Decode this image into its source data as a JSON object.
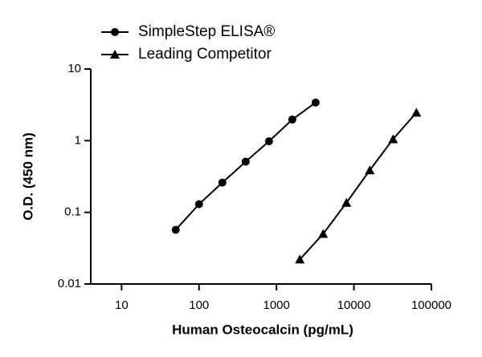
{
  "chart_data": {
    "type": "line",
    "x_label": "Human Osteocalcin (pg/mL)",
    "y_label": "O.D. (450 nm)",
    "x_scale": "log",
    "y_scale": "log",
    "legend": "top-left",
    "xlim": [
      4,
      100000
    ],
    "xticks": [
      10,
      100,
      1000,
      10000,
      100000
    ],
    "ylim": [
      0.01,
      10
    ],
    "yticks": [
      0.01,
      0.1,
      1,
      10
    ],
    "series": [
      {
        "name": "SimpleStep ELISA®",
        "marker": "circle",
        "color": "#000000",
        "x": [
          50,
          100,
          200,
          400,
          800,
          1600,
          3200
        ],
        "values": [
          0.057,
          0.13,
          0.26,
          0.51,
          0.98,
          1.97,
          3.4
        ]
      },
      {
        "name": "Leading Competitor",
        "marker": "triangle",
        "color": "#000000",
        "x": [
          2000,
          4000,
          8000,
          16000,
          32000,
          64000
        ],
        "values": [
          0.022,
          0.05,
          0.136,
          0.386,
          1.05,
          2.46
        ]
      }
    ]
  }
}
